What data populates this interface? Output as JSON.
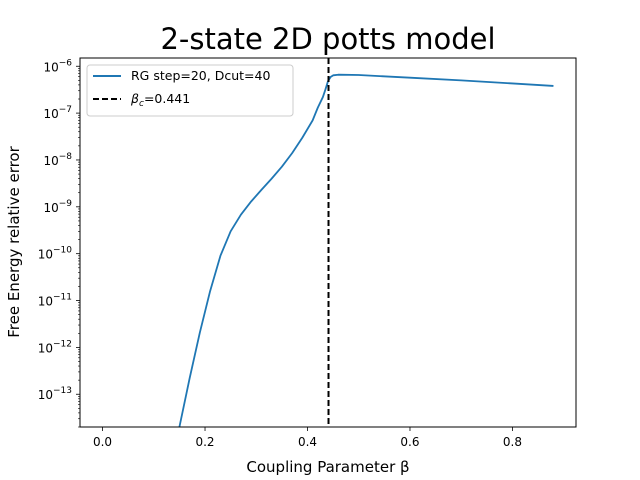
{
  "chart_data": {
    "type": "line",
    "title": "2-state 2D potts model",
    "xlabel": "Coupling Parameter β",
    "ylabel": "Free Energy relative error",
    "yscale": "log",
    "xlim": [
      -0.044,
      0.924
    ],
    "ylim": [
      2e-14,
      1.5e-06
    ],
    "xticks": [
      {
        "value": 0.0,
        "label": "0.0"
      },
      {
        "value": 0.2,
        "label": "0.2"
      },
      {
        "value": 0.4,
        "label": "0.4"
      },
      {
        "value": 0.6,
        "label": "0.6"
      },
      {
        "value": 0.8,
        "label": "0.8"
      }
    ],
    "yticks": [
      {
        "exp": -13,
        "base": "10",
        "sup": "−13"
      },
      {
        "exp": -12,
        "base": "10",
        "sup": "−12"
      },
      {
        "exp": -11,
        "base": "10",
        "sup": "−11"
      },
      {
        "exp": -10,
        "base": "10",
        "sup": "−10"
      },
      {
        "exp": -9,
        "base": "10",
        "sup": "−9"
      },
      {
        "exp": -8,
        "base": "10",
        "sup": "−8"
      },
      {
        "exp": -7,
        "base": "10",
        "sup": "−7"
      },
      {
        "exp": -6,
        "base": "10",
        "sup": "−6"
      }
    ],
    "grid": false,
    "legend_position": "upper-left",
    "series": [
      {
        "name": "RG step=20, Dcut=40",
        "color": "#1f77b4",
        "style": "solid",
        "x": [
          0.15,
          0.17,
          0.19,
          0.21,
          0.23,
          0.25,
          0.27,
          0.29,
          0.31,
          0.33,
          0.35,
          0.37,
          0.39,
          0.41,
          0.42,
          0.43,
          0.435,
          0.44,
          0.445,
          0.45,
          0.46,
          0.5,
          0.6,
          0.7,
          0.8,
          0.88
        ],
        "y": [
          2e-14,
          2.2e-13,
          2.1e-12,
          1.6e-11,
          9e-11,
          3e-10,
          6.8e-10,
          1.3e-09,
          2.3e-09,
          4e-09,
          7.2e-09,
          1.4e-08,
          3e-08,
          7e-08,
          1.3e-07,
          2.2e-07,
          3.2e-07,
          4.8e-07,
          5.9e-07,
          6.4e-07,
          6.6e-07,
          6.5e-07,
          5.7e-07,
          5e-07,
          4.3e-07,
          3.8e-07
        ]
      },
      {
        "name": "βc=0.441",
        "name_parts": {
          "symbol": "β",
          "sub": "c",
          "rest": "=0.441"
        },
        "color": "#000000",
        "style": "dashed",
        "vline_x": 0.441
      }
    ]
  }
}
